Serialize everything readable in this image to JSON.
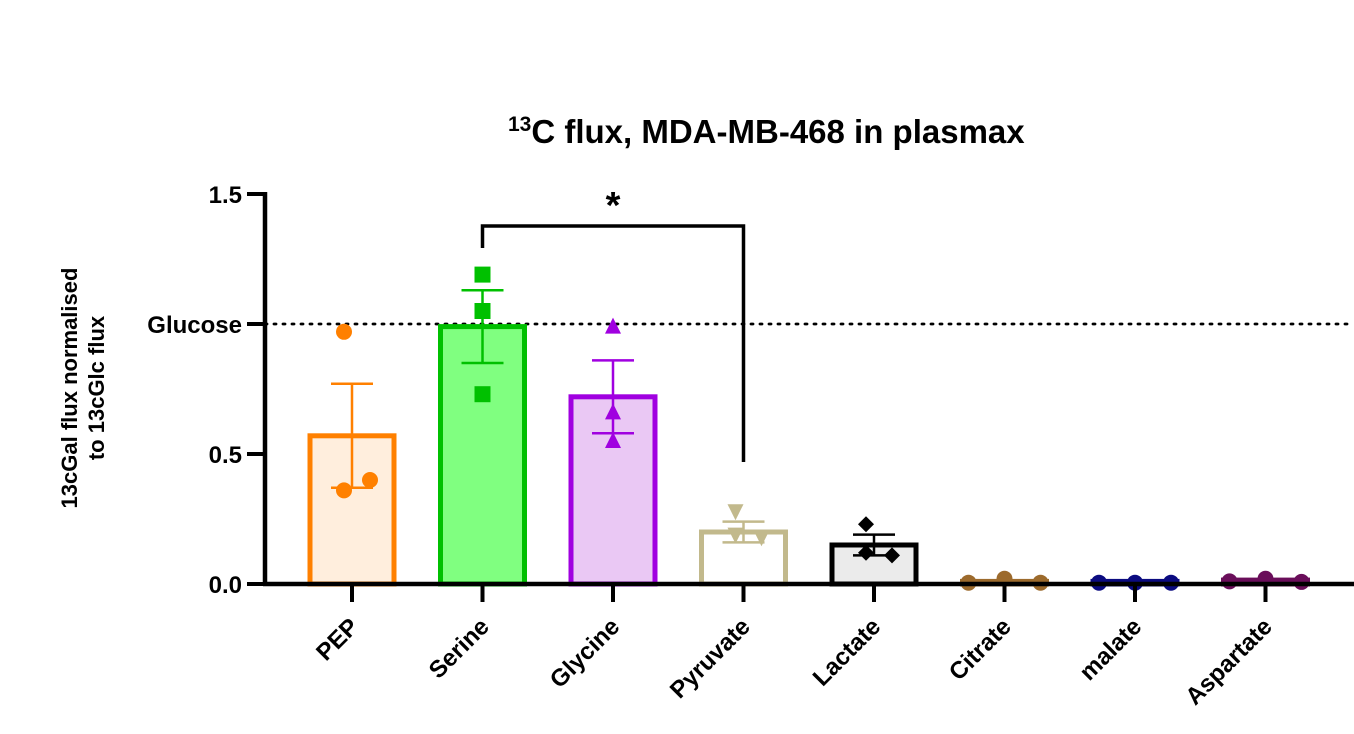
{
  "chart_data": {
    "type": "bar",
    "title_sup": "13",
    "title_main": "C flux, MDA-MB-468 in plasmax",
    "ylabel_line1": "13cGal flux normalised",
    "ylabel_line2": "to 13cGlc flux",
    "ylim": [
      0,
      1.5
    ],
    "yticks": [
      {
        "value": 0,
        "label": "0.0"
      },
      {
        "value": 0.5,
        "label": "0.5"
      },
      {
        "value": 1.5,
        "label": "1.5"
      }
    ],
    "reference_line": {
      "value": 1.0,
      "label": "Glucose",
      "style": "dotted"
    },
    "significance": {
      "from": "Serine",
      "to": "Pyruvate",
      "label": "*"
    },
    "categories": [
      "PEP",
      "Serine",
      "Glycine",
      "Pyruvate",
      "Lactate",
      "Citrate",
      "malate",
      "Aspartate"
    ],
    "series": [
      {
        "category": "PEP",
        "mean": 0.57,
        "sem": 0.2,
        "points": [
          0.97,
          0.36,
          0.4
        ],
        "marker": "circle",
        "stroke": "#FF8000",
        "fill": "#FFEEDD"
      },
      {
        "category": "Serine",
        "mean": 0.99,
        "sem": 0.14,
        "points": [
          1.19,
          1.05,
          0.73
        ],
        "marker": "square",
        "stroke": "#00C000",
        "fill": "#80FF80"
      },
      {
        "category": "Glycine",
        "mean": 0.72,
        "sem": 0.14,
        "points": [
          0.99,
          0.66,
          0.55
        ],
        "marker": "triangle-up",
        "stroke": "#A000E0",
        "fill": "#EAC8F4"
      },
      {
        "category": "Pyruvate",
        "mean": 0.2,
        "sem": 0.04,
        "points": [
          0.28,
          0.19,
          0.18
        ],
        "marker": "triangle-down",
        "stroke": "#C2B98C",
        "fill": "#FFFFFF"
      },
      {
        "category": "Lactate",
        "mean": 0.15,
        "sem": 0.04,
        "points": [
          0.23,
          0.12,
          0.11
        ],
        "marker": "diamond",
        "stroke": "#000000",
        "fill": "#EBEBEB"
      },
      {
        "category": "Citrate",
        "mean": 0.01,
        "sem": 0.005,
        "points": [
          0.005,
          0.02,
          0.005
        ],
        "marker": "circle",
        "stroke": "#9C6A2C",
        "fill": "#9C6A2C"
      },
      {
        "category": "malate",
        "mean": 0.01,
        "sem": 0.003,
        "points": [
          0.005,
          0.005,
          0.005
        ],
        "marker": "circle",
        "stroke": "#0B0B80",
        "fill": "#0B0B80"
      },
      {
        "category": "Aspartate",
        "mean": 0.015,
        "sem": 0.005,
        "points": [
          0.01,
          0.02,
          0.008
        ],
        "marker": "circle",
        "stroke": "#6A0E5A",
        "fill": "#6A0E5A"
      }
    ]
  }
}
